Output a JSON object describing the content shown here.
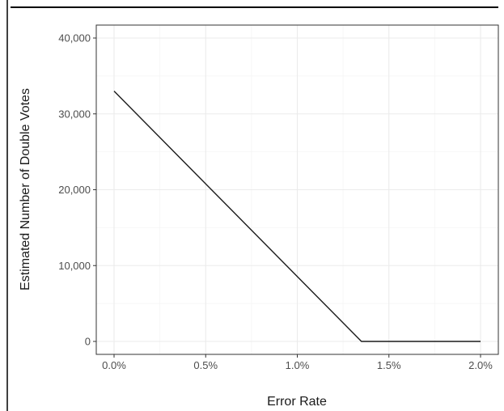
{
  "chart_data": {
    "type": "line",
    "title": "",
    "xlabel": "Error Rate",
    "ylabel": "Estimated Number of Double Votes",
    "x_ticks": [
      "0.0%",
      "0.5%",
      "1.0%",
      "1.5%",
      "2.0%"
    ],
    "y_ticks": [
      "0",
      "10,000",
      "20,000",
      "30,000",
      "40,000"
    ],
    "xlim": [
      0,
      2.0
    ],
    "ylim": [
      0,
      40000
    ],
    "x_unit": "%",
    "grid": true,
    "series": [
      {
        "x": [
          0.0,
          1.35,
          2.0
        ],
        "y": [
          33000,
          0,
          0
        ]
      }
    ],
    "colors": {
      "line": "#1a1a1a",
      "grid_major": "#ebebeb",
      "grid_minor": "#f5f5f5",
      "panel_border": "#333333"
    }
  }
}
